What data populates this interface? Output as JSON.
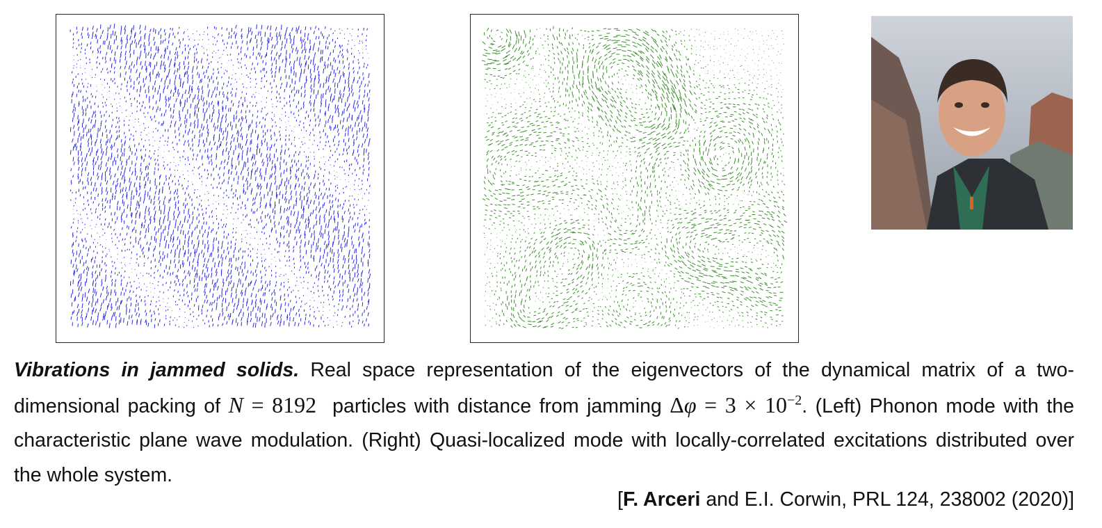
{
  "caption": {
    "title": "Vibrations in jammed solids.",
    "text_1": "Real space representation of the eigenvectors of the dynamical matrix of a two-dimensional packing of",
    "math_1": {
      "var": "N",
      "rest": "= 8192"
    },
    "text_2": "particles with distance from jamming",
    "math_2": {
      "delta": "Δ",
      "var": "φ",
      "rest": "= 3 × 10",
      "exp": "−2"
    },
    "text_3": ". (Left) Phonon mode with the characteristic plane wave modulation. (Right) Quasi-localized mode with locally-correlated excitations distributed over the whole system."
  },
  "citation": {
    "open": "[",
    "author": "F. Arceri",
    "rest": "and E.I. Corwin, PRL 124, 238002 (2020)]"
  }
}
